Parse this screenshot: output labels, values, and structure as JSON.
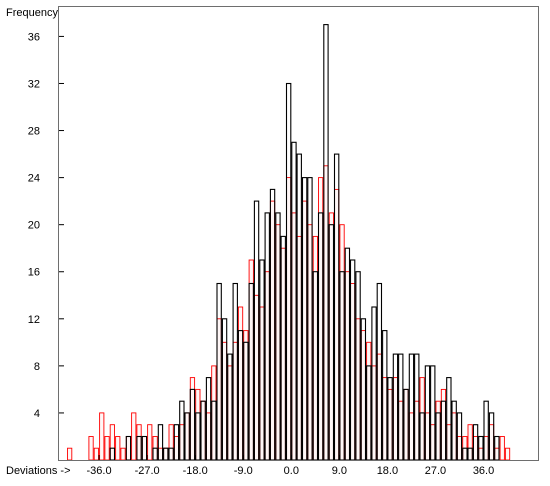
{
  "chart_data": {
    "type": "bar",
    "ylabel": "Frequency",
    "xlabel": "Deviations ->",
    "xlim": [
      -43.5,
      46.2
    ],
    "ylim": [
      0,
      38.5
    ],
    "bin_width": 1.0,
    "x_tick_values": [
      -36,
      -27,
      -18,
      -9,
      0,
      9,
      18,
      27,
      36
    ],
    "x_tick_labels": [
      "-36.0",
      "-27.0",
      "-18.0",
      "-9.0",
      "0.0",
      "9.0",
      "18.0",
      "27.0",
      "36.0"
    ],
    "y_tick_values": [
      4,
      8,
      12,
      16,
      20,
      24,
      28,
      32,
      36
    ],
    "y_tick_labels": [
      "4",
      "8",
      "12",
      "16",
      "20",
      "24",
      "28",
      "32",
      "36"
    ],
    "grid": false,
    "legend": "none",
    "bin_start": -42,
    "series": [
      {
        "color": "#000000",
        "counts": [
          0,
          0,
          0,
          0,
          0,
          0,
          0,
          0,
          1,
          0,
          0,
          2,
          0,
          2,
          2,
          0,
          1,
          3,
          1,
          1,
          3,
          5,
          4,
          6,
          4,
          5,
          7,
          5,
          15,
          12,
          9,
          15,
          11,
          10,
          15,
          22,
          17,
          21,
          23,
          21,
          19,
          32,
          27,
          26,
          24,
          24,
          16,
          21,
          37,
          20,
          26,
          16,
          18,
          17,
          16,
          12,
          8,
          13,
          15,
          11,
          7,
          9,
          9,
          6,
          9,
          9,
          4,
          8,
          8,
          4,
          5,
          7,
          5,
          4,
          1,
          1,
          3,
          2,
          5,
          4,
          2,
          0,
          0,
          0,
          0,
          0
        ]
      },
      {
        "color": "#ff0000",
        "counts": [
          1,
          0,
          0,
          0,
          2,
          1,
          4,
          2,
          3,
          2,
          1,
          2,
          4,
          3,
          2,
          3,
          2,
          1,
          1,
          3,
          2,
          3,
          4,
          7,
          6,
          5,
          4,
          8,
          12,
          10,
          8,
          10,
          13,
          11,
          17,
          14,
          13,
          16,
          22,
          20,
          18,
          24,
          21,
          19,
          22,
          20,
          19,
          24,
          25,
          21,
          23,
          20,
          16,
          15,
          12,
          11,
          10,
          8,
          9,
          7,
          6,
          7,
          5,
          6,
          4,
          5,
          7,
          4,
          3,
          5,
          6,
          3,
          4,
          2,
          2,
          3,
          2,
          1,
          2,
          3,
          1,
          2,
          1,
          0,
          0,
          0
        ]
      }
    ]
  }
}
